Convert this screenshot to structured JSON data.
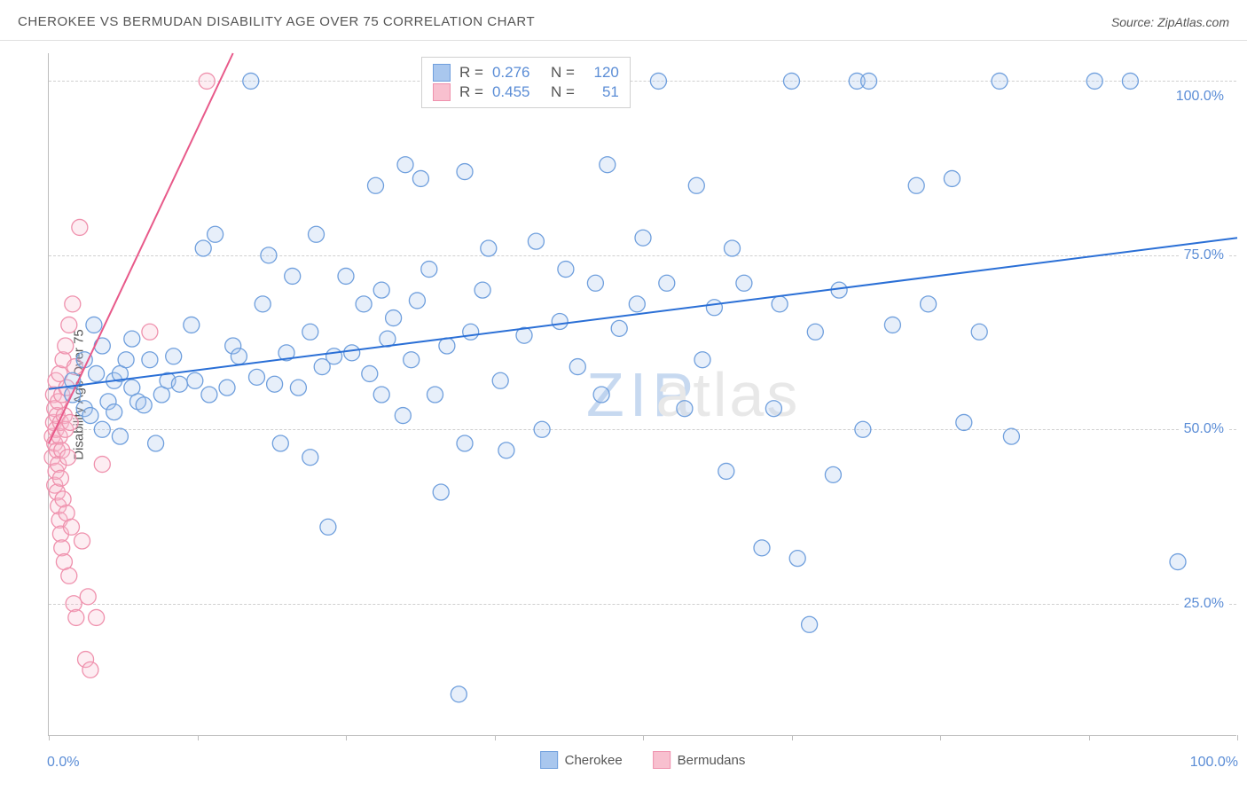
{
  "header": {
    "title": "CHEROKEE VS BERMUDAN DISABILITY AGE OVER 75 CORRELATION CHART",
    "source_prefix": "Source: ",
    "source_name": "ZipAtlas.com"
  },
  "watermark": {
    "text1": "ZIP",
    "text2": "atlas"
  },
  "y_axis": {
    "title": "Disability Age Over 75"
  },
  "chart": {
    "type": "scatter+regression",
    "xlim": [
      0,
      100
    ],
    "ylim": [
      6,
      104
    ],
    "x_ticks": [
      0,
      12.5,
      25,
      37.5,
      50,
      62.5,
      75,
      87.5,
      100
    ],
    "y_gridlines": [
      25,
      50,
      75,
      100
    ],
    "y_tick_labels": [
      "25.0%",
      "50.0%",
      "75.0%",
      "100.0%"
    ],
    "x_tick_labels": {
      "left": "0.0%",
      "right": "100.0%"
    },
    "background_color": "#ffffff",
    "grid_color": "#d0d0d0",
    "axis_color": "#bdbdbd",
    "label_color": "#5b8dd6",
    "marker_radius": 9,
    "marker_stroke_width": 1.3,
    "marker_fill_opacity": 0.28,
    "series": {
      "cherokee": {
        "label": "Cherokee",
        "fill": "#a9c7ee",
        "stroke": "#6f9fdd",
        "line_color": "#2a6fd6",
        "line_width": 2,
        "R": "0.276",
        "N": "120",
        "regression": {
          "x1": 0,
          "y1": 55.8,
          "x2": 100,
          "y2": 77.5
        },
        "points": [
          [
            2,
            55
          ],
          [
            2,
            57
          ],
          [
            3,
            53
          ],
          [
            3,
            60
          ],
          [
            3.5,
            52
          ],
          [
            3.8,
            65
          ],
          [
            4,
            58
          ],
          [
            4.5,
            50
          ],
          [
            4.5,
            62
          ],
          [
            5,
            54
          ],
          [
            5.5,
            57
          ],
          [
            5.5,
            52.5
          ],
          [
            6,
            49
          ],
          [
            6,
            58
          ],
          [
            6.5,
            60
          ],
          [
            7,
            56
          ],
          [
            7,
            63
          ],
          [
            7.5,
            54
          ],
          [
            8,
            53.5
          ],
          [
            8.5,
            60
          ],
          [
            9,
            48
          ],
          [
            9.5,
            55
          ],
          [
            10,
            57
          ],
          [
            10.5,
            60.5
          ],
          [
            11,
            56.5
          ],
          [
            12,
            65
          ],
          [
            12.3,
            57
          ],
          [
            13,
            76
          ],
          [
            13.5,
            55
          ],
          [
            14,
            78
          ],
          [
            15,
            56
          ],
          [
            15.5,
            62
          ],
          [
            16,
            60.5
          ],
          [
            17,
            100
          ],
          [
            17.5,
            57.5
          ],
          [
            18,
            68
          ],
          [
            18.5,
            75
          ],
          [
            19,
            56.5
          ],
          [
            19.5,
            48
          ],
          [
            20,
            61
          ],
          [
            20.5,
            72
          ],
          [
            21,
            56
          ],
          [
            22,
            64
          ],
          [
            22,
            46
          ],
          [
            22.5,
            78
          ],
          [
            23,
            59
          ],
          [
            23.5,
            36
          ],
          [
            24,
            60.5
          ],
          [
            25,
            72
          ],
          [
            25.5,
            61,
            0
          ],
          [
            26.5,
            68
          ],
          [
            27,
            58
          ],
          [
            27.5,
            85
          ],
          [
            28,
            70
          ],
          [
            28,
            55
          ],
          [
            28.5,
            63
          ],
          [
            29,
            66
          ],
          [
            29.8,
            52
          ],
          [
            30,
            88
          ],
          [
            30.5,
            60
          ],
          [
            31,
            68.5
          ],
          [
            31.3,
            86
          ],
          [
            32,
            73
          ],
          [
            32.5,
            55
          ],
          [
            33,
            41
          ],
          [
            33.5,
            62
          ],
          [
            34.5,
            12
          ],
          [
            35,
            48
          ],
          [
            35,
            87
          ],
          [
            35.5,
            64
          ],
          [
            36.5,
            70
          ],
          [
            37,
            76
          ],
          [
            37.5,
            100
          ],
          [
            38,
            57
          ],
          [
            38.5,
            47
          ],
          [
            40,
            63.5
          ],
          [
            41,
            77
          ],
          [
            41.5,
            50
          ],
          [
            43,
            65.5
          ],
          [
            43.5,
            73
          ],
          [
            44.5,
            59
          ],
          [
            45.5,
            100
          ],
          [
            46,
            71
          ],
          [
            46.5,
            55
          ],
          [
            47,
            88
          ],
          [
            48,
            64.5
          ],
          [
            49.5,
            68
          ],
          [
            50,
            77.5
          ],
          [
            51.3,
            100
          ],
          [
            52,
            71
          ],
          [
            53.5,
            53
          ],
          [
            54.5,
            85
          ],
          [
            55,
            60
          ],
          [
            56,
            67.5
          ],
          [
            57,
            44
          ],
          [
            57.5,
            76
          ],
          [
            58.5,
            71
          ],
          [
            60,
            33
          ],
          [
            61,
            53
          ],
          [
            61.5,
            68
          ],
          [
            62.5,
            100
          ],
          [
            63,
            31.5
          ],
          [
            64,
            22
          ],
          [
            64.5,
            64
          ],
          [
            66,
            43.5
          ],
          [
            66.5,
            70
          ],
          [
            68,
            100
          ],
          [
            68.5,
            50
          ],
          [
            69,
            100
          ],
          [
            71,
            65
          ],
          [
            73,
            85
          ],
          [
            74,
            68
          ],
          [
            76,
            86
          ],
          [
            77,
            51
          ],
          [
            78.3,
            64
          ],
          [
            80,
            100
          ],
          [
            81,
            49
          ],
          [
            88,
            100
          ],
          [
            91,
            100
          ],
          [
            95,
            31
          ]
        ]
      },
      "bermudans": {
        "label": "Bermudans",
        "fill": "#f8c0cf",
        "stroke": "#ef91ad",
        "line_color": "#e85a8a",
        "line_width": 2,
        "R": "0.455",
        "N": "51",
        "regression": {
          "x1": 0,
          "y1": 48,
          "x2": 15.5,
          "y2": 104
        },
        "points": [
          [
            0.3,
            46
          ],
          [
            0.3,
            49
          ],
          [
            0.4,
            51
          ],
          [
            0.4,
            55
          ],
          [
            0.5,
            42
          ],
          [
            0.5,
            48
          ],
          [
            0.5,
            53
          ],
          [
            0.6,
            44
          ],
          [
            0.6,
            50
          ],
          [
            0.6,
            57
          ],
          [
            0.7,
            41
          ],
          [
            0.7,
            47
          ],
          [
            0.7,
            52
          ],
          [
            0.8,
            39
          ],
          [
            0.8,
            45
          ],
          [
            0.8,
            54
          ],
          [
            0.9,
            37
          ],
          [
            0.9,
            49
          ],
          [
            0.9,
            58
          ],
          [
            1.0,
            35
          ],
          [
            1.0,
            43
          ],
          [
            1.0,
            51
          ],
          [
            1.1,
            33
          ],
          [
            1.1,
            47
          ],
          [
            1.1,
            55
          ],
          [
            1.2,
            40
          ],
          [
            1.2,
            60
          ],
          [
            1.3,
            31
          ],
          [
            1.3,
            52
          ],
          [
            1.4,
            50
          ],
          [
            1.4,
            62
          ],
          [
            1.5,
            38
          ],
          [
            1.5,
            56
          ],
          [
            1.6,
            46
          ],
          [
            1.7,
            29
          ],
          [
            1.7,
            65
          ],
          [
            1.8,
            51
          ],
          [
            1.9,
            36
          ],
          [
            2.0,
            68
          ],
          [
            2.1,
            25
          ],
          [
            2.2,
            59
          ],
          [
            2.3,
            23
          ],
          [
            2.6,
            79
          ],
          [
            2.8,
            34
          ],
          [
            3.1,
            17
          ],
          [
            3.3,
            26
          ],
          [
            3.5,
            15.5
          ],
          [
            4.0,
            23
          ],
          [
            4.5,
            45
          ],
          [
            8.5,
            64
          ],
          [
            13.3,
            100
          ]
        ]
      }
    }
  },
  "stats_box": {
    "r_label": "R =",
    "n_label": "N ="
  },
  "typography": {
    "title_fontsize": 15,
    "label_fontsize": 16,
    "stats_fontsize": 17
  }
}
